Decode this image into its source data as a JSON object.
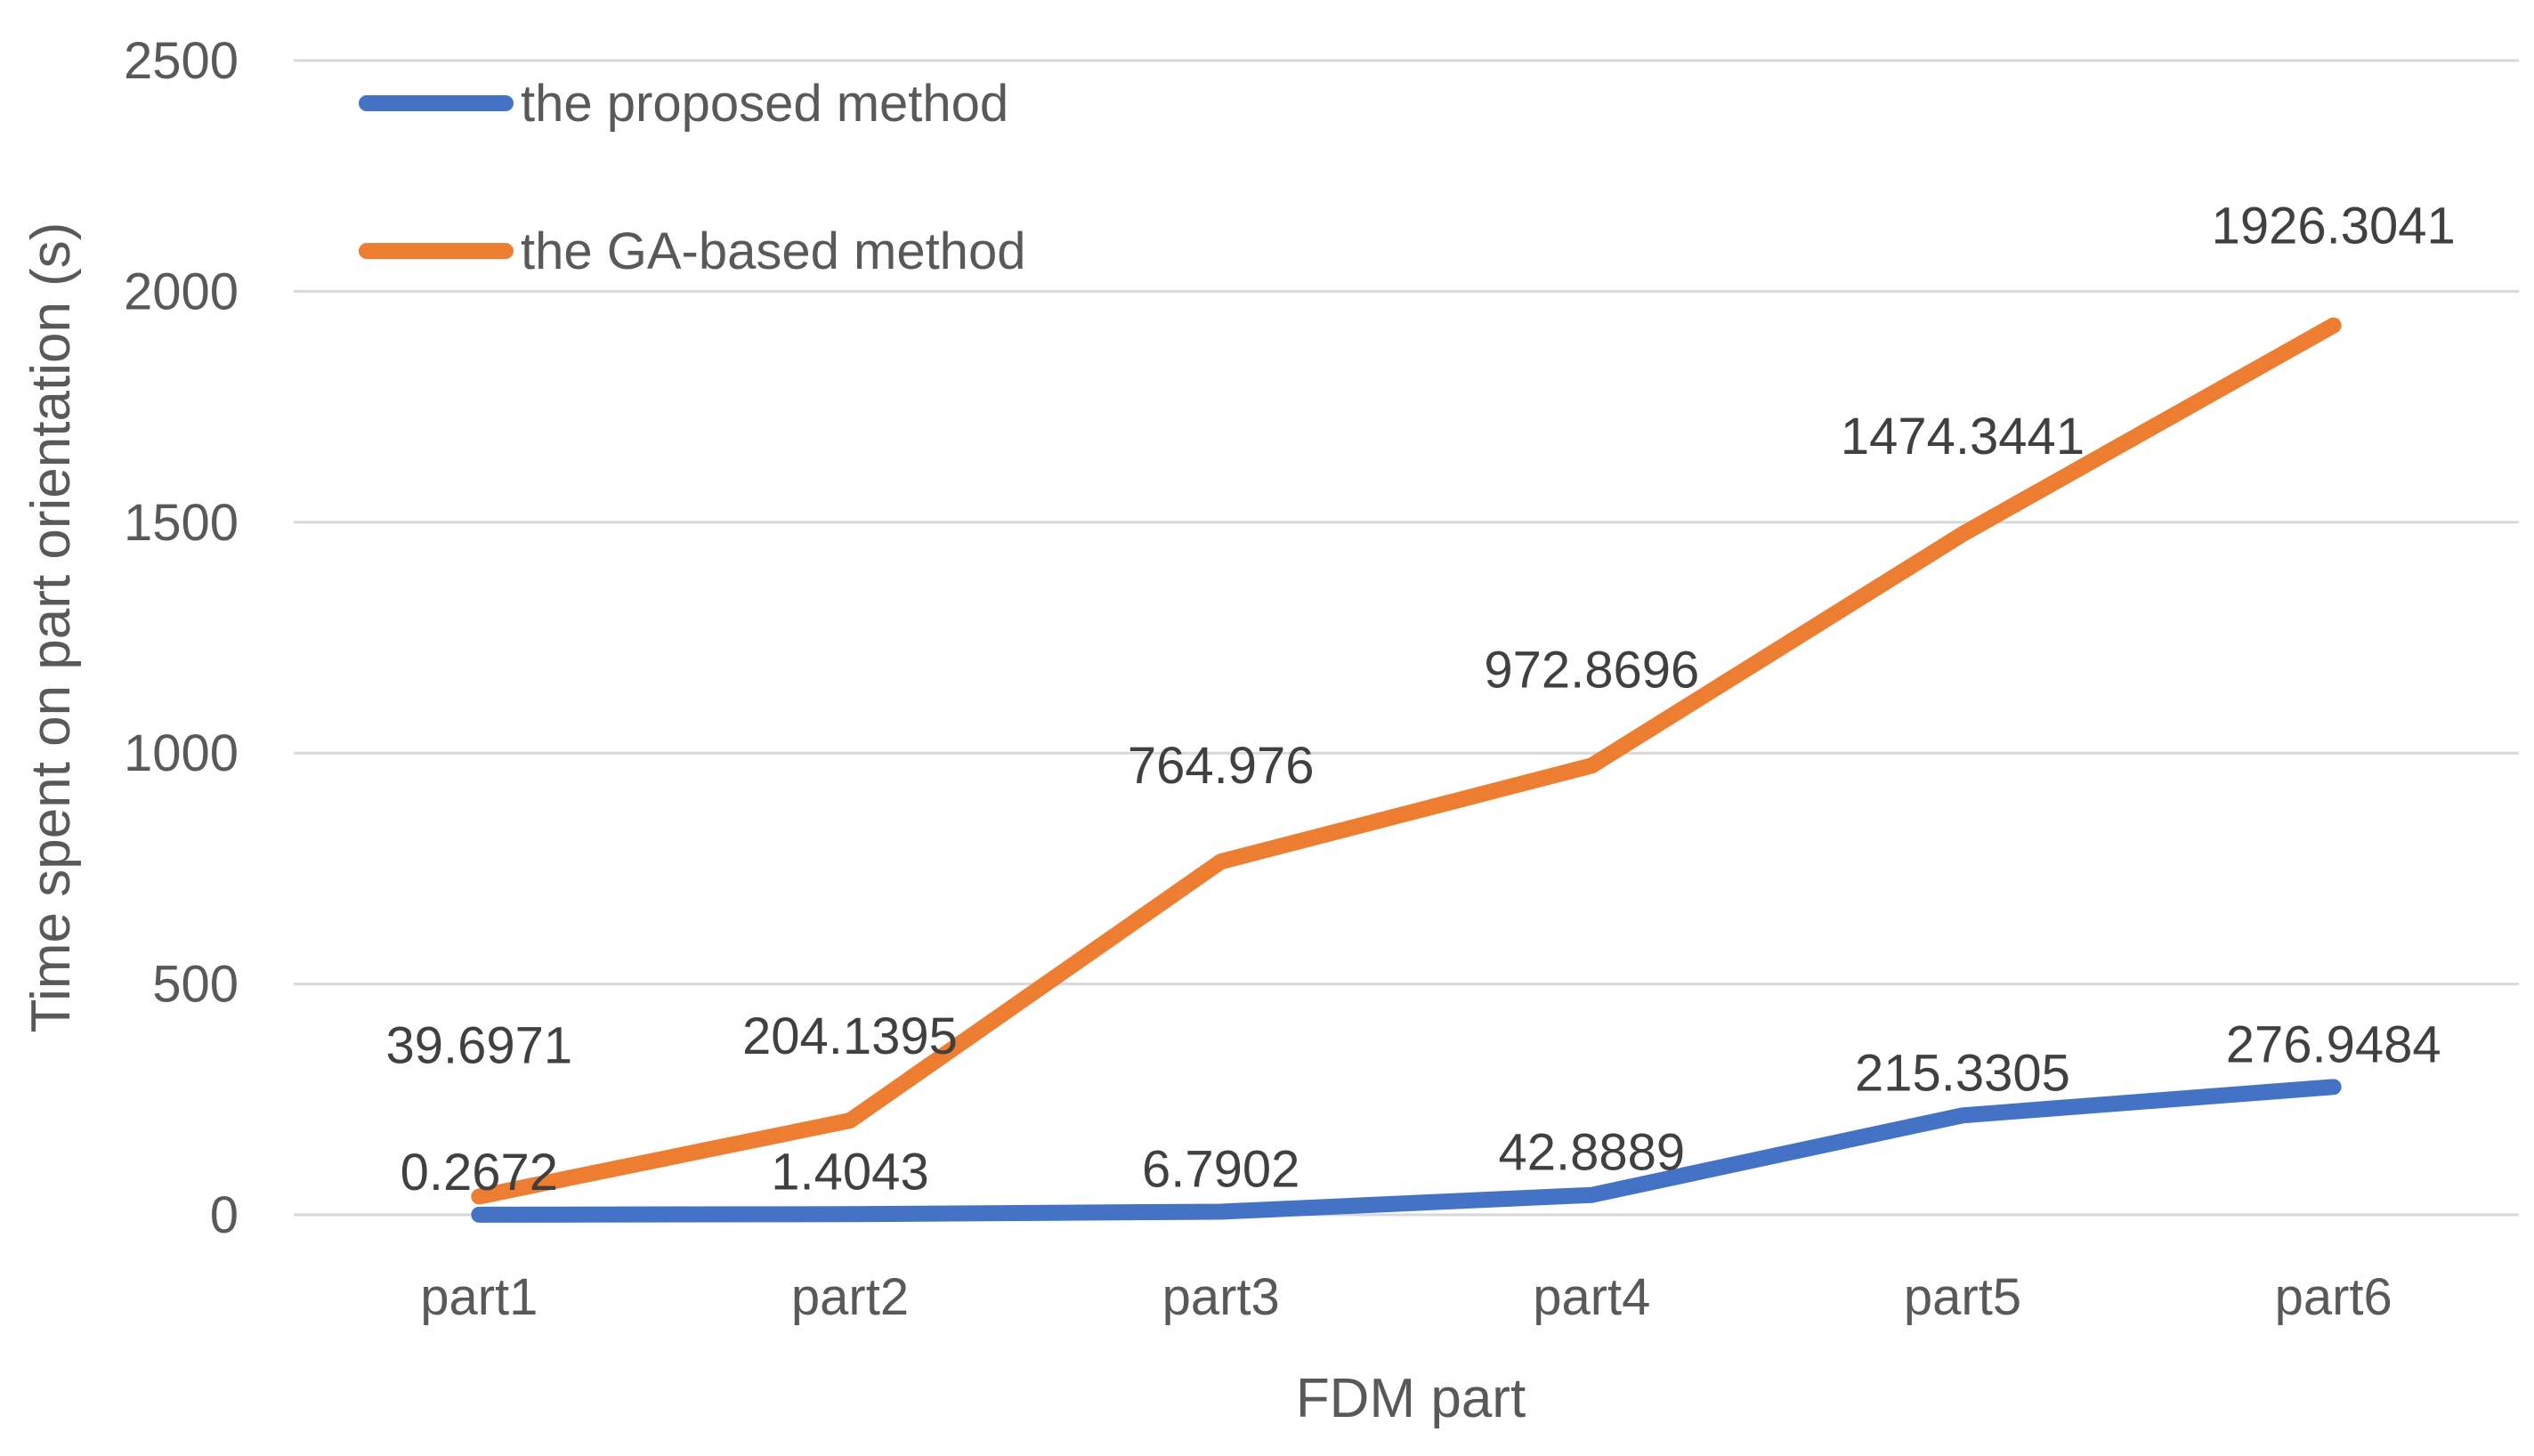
{
  "chart_data": {
    "type": "line",
    "title": "",
    "xlabel": "FDM part",
    "ylabel": "Time spent on part orientation (s)",
    "categories": [
      "part1",
      "part2",
      "part3",
      "part4",
      "part5",
      "part6"
    ],
    "ylim": [
      0,
      2500
    ],
    "yticks": [
      0,
      500,
      1000,
      1500,
      2000,
      2500
    ],
    "grid": true,
    "legend_position": "top-left",
    "series": [
      {
        "name": "the proposed method",
        "color": "#4472C4",
        "values": [
          0.2672,
          1.4043,
          6.7902,
          42.8889,
          215.3305,
          276.9484
        ],
        "labels": [
          "0.2672",
          "1.4043",
          "6.7902",
          "42.8889",
          "215.3305",
          "276.9484"
        ]
      },
      {
        "name": "the GA-based method",
        "color": "#ED7D31",
        "values": [
          39.6971,
          204.1395,
          764.976,
          972.8696,
          1474.3441,
          1926.3041
        ],
        "labels": [
          "39.6971",
          "204.1395",
          "764.976",
          "972.8696",
          "1474.3441",
          "1926.3041"
        ]
      }
    ]
  }
}
